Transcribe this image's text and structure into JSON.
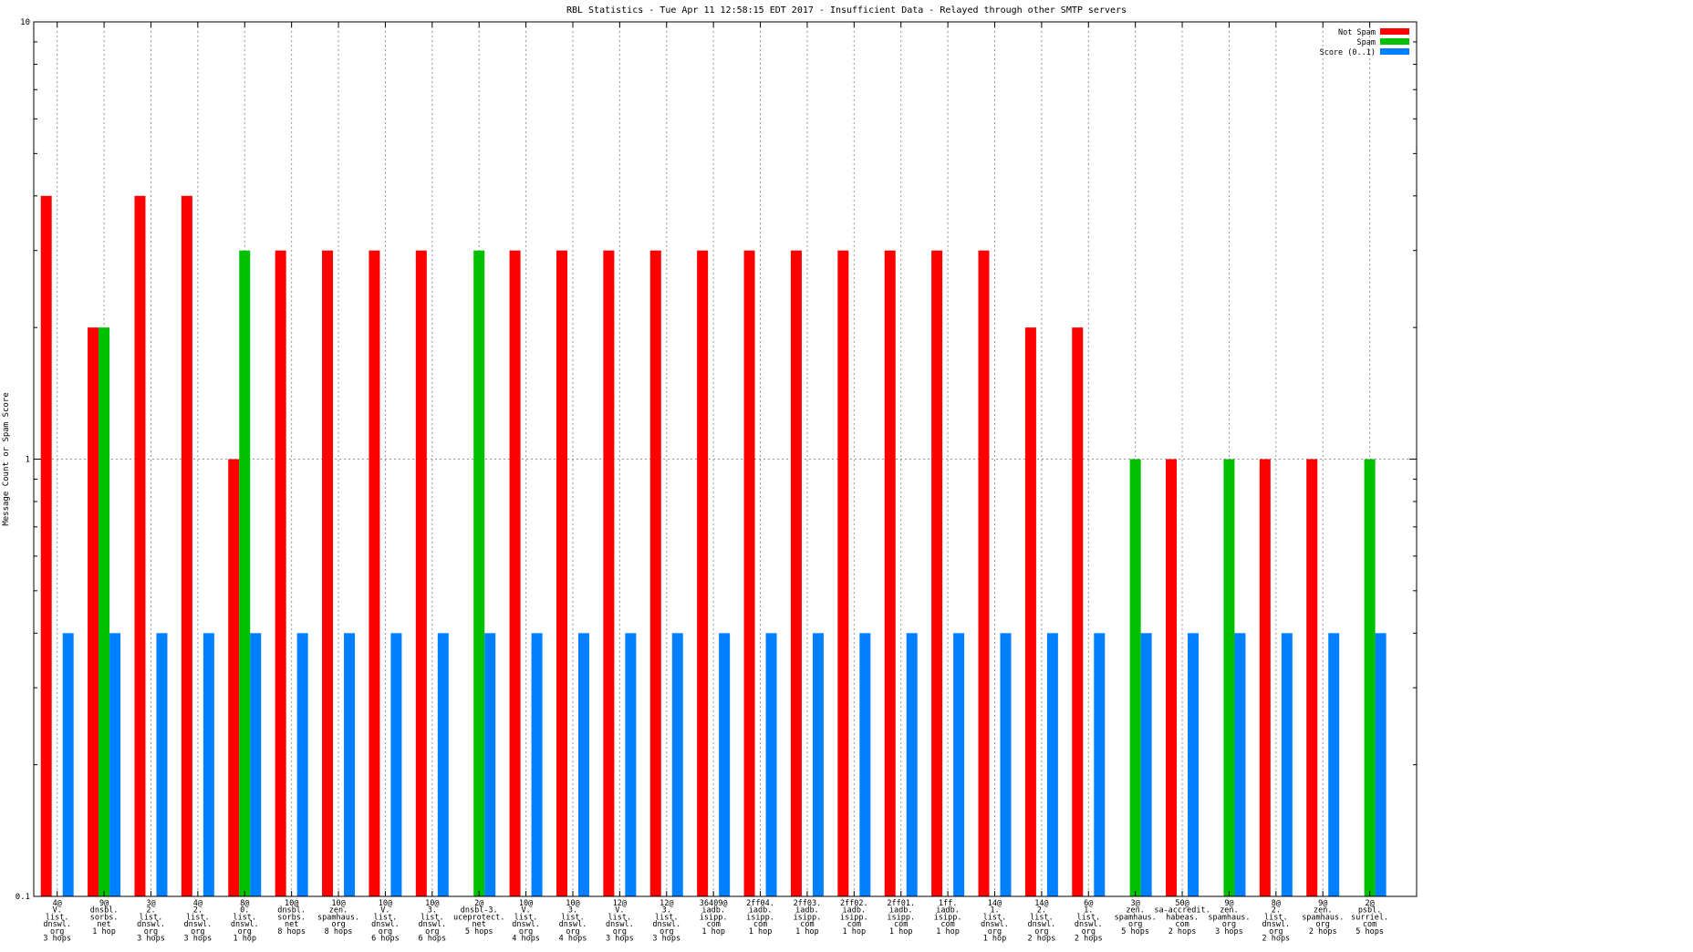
{
  "chart_data": {
    "type": "bar",
    "title": "RBL Statistics - Tue Apr 11 12:58:15 EDT 2017 - Insufficient Data - Relayed through other SMTP servers",
    "xlabel": "",
    "ylabel": "Message Count or Spam Score",
    "yscale": "log",
    "ylim": [
      0.1,
      10
    ],
    "yticks": [
      "10",
      "1",
      "0.1"
    ],
    "grid": true,
    "legend_position": "top-right",
    "categories": [
      [
        "4@",
        "V.",
        "list.",
        "dnswl.",
        "org",
        "3 hops"
      ],
      [
        "9@",
        "dnsbl.",
        "sorbs.",
        "net",
        "1 hop"
      ],
      [
        "3@",
        "2.",
        "list.",
        "dnswl.",
        "org",
        "3 hops"
      ],
      [
        "4@",
        "2.",
        "list.",
        "dnswl.",
        "org",
        "3 hops"
      ],
      [
        "8@",
        "0.",
        "list.",
        "dnswl.",
        "org",
        "1 hop"
      ],
      [
        "10@",
        "dnsbl.",
        "sorbs.",
        "net",
        "8 hops"
      ],
      [
        "10@",
        "zen.",
        "spamhaus.",
        "org",
        "8 hops"
      ],
      [
        "10@",
        "V.",
        "list.",
        "dnswl.",
        "org",
        "6 hops"
      ],
      [
        "10@",
        "3.",
        "list.",
        "dnswl.",
        "org",
        "6 hops"
      ],
      [
        "2@",
        "dnsbl-3.",
        "uceprotect.",
        "net",
        "5 hops"
      ],
      [
        "10@",
        "V.",
        "list.",
        "dnswl.",
        "org",
        "4 hops"
      ],
      [
        "10@",
        "3.",
        "list.",
        "dnswl.",
        "org",
        "4 hops"
      ],
      [
        "12@",
        "V.",
        "list.",
        "dnswl.",
        "org",
        "3 hops"
      ],
      [
        "12@",
        "3.",
        "list.",
        "dnswl.",
        "org",
        "3 hops"
      ],
      [
        "36409@",
        "iadb.",
        "isipp.",
        "com",
        "1 hop"
      ],
      [
        "2ff04.",
        "iadb.",
        "isipp.",
        "com",
        "1 hop"
      ],
      [
        "2ff03.",
        "iadb.",
        "isipp.",
        "com",
        "1 hop"
      ],
      [
        "2ff02.",
        "iadb.",
        "isipp.",
        "com",
        "1 hop"
      ],
      [
        "2ff01.",
        "iadb.",
        "isipp.",
        "com",
        "1 hop"
      ],
      [
        "1ff.",
        "iadb.",
        "isipp.",
        "com",
        "1 hop"
      ],
      [
        "14@",
        "1.",
        "list.",
        "dnswl.",
        "org",
        "1 hop"
      ],
      [
        "14@",
        "2.",
        "list.",
        "dnswl.",
        "org",
        "2 hops"
      ],
      [
        "6@",
        "1.",
        "list.",
        "dnswl.",
        "org",
        "2 hops"
      ],
      [
        "3@",
        "zen.",
        "spamhaus.",
        "org",
        "5 hops"
      ],
      [
        "50@",
        "sa-accredit.",
        "habeas.",
        "com",
        "2 hops"
      ],
      [
        "9@",
        "zen.",
        "spamhaus.",
        "org",
        "3 hops"
      ],
      [
        "8@",
        "2.",
        "list.",
        "dnswl.",
        "org",
        "2 hops"
      ],
      [
        "9@",
        "zen.",
        "spamhaus.",
        "org",
        "2 hops"
      ],
      [
        "2@",
        "psbl.",
        "surriel.",
        "com",
        "5 hops"
      ]
    ],
    "series": [
      {
        "name": "Not Spam",
        "color": "#ff0000",
        "values": [
          4,
          2,
          4,
          4,
          1,
          3,
          3,
          3,
          3,
          0,
          3,
          3,
          3,
          3,
          3,
          3,
          3,
          3,
          3,
          3,
          3,
          2,
          2,
          0,
          1,
          0,
          1,
          1,
          0
        ]
      },
      {
        "name": "Spam",
        "color": "#00c000",
        "values": [
          0,
          2,
          0,
          0,
          3,
          0,
          0,
          0,
          0,
          3,
          0,
          0,
          0,
          0,
          0,
          0,
          0,
          0,
          0,
          0,
          0,
          0,
          0,
          1,
          0,
          1,
          0,
          0,
          1
        ]
      },
      {
        "name": "Score (0..1)",
        "color": "#0080ff",
        "values": [
          0.4,
          0.4,
          0.4,
          0.4,
          0.4,
          0.4,
          0.4,
          0.4,
          0.4,
          0.4,
          0.4,
          0.4,
          0.4,
          0.4,
          0.4,
          0.4,
          0.4,
          0.4,
          0.4,
          0.4,
          0.4,
          0.4,
          0.4,
          0.4,
          0.4,
          0.4,
          0.4,
          0.4,
          0.4
        ]
      }
    ]
  }
}
